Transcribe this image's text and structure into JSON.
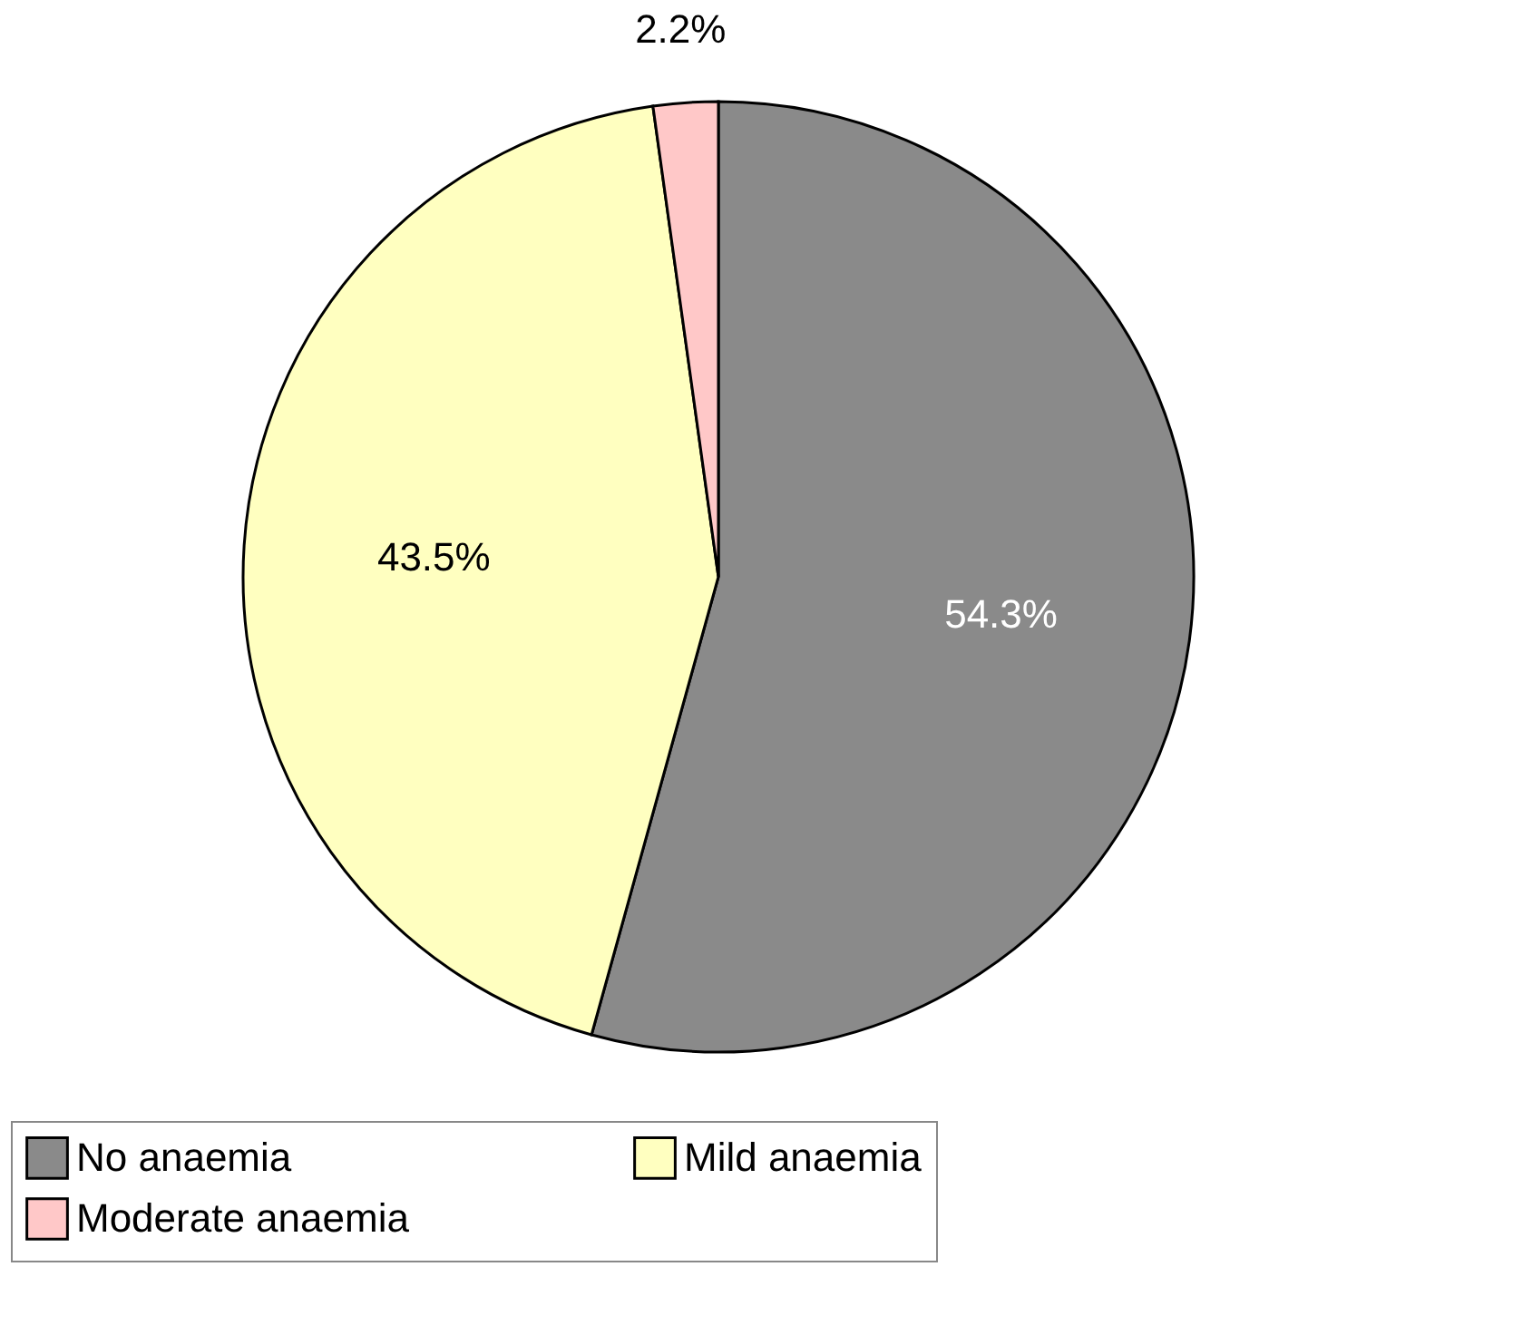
{
  "chart_data": {
    "type": "pie",
    "categories": [
      "No anaemia",
      "Mild anaemia",
      "Moderate anaemia"
    ],
    "values": [
      54.3,
      43.5,
      2.2
    ],
    "colors": [
      "#8a8a8a",
      "#ffffc0",
      "#ffc8c8"
    ],
    "value_labels": [
      "54.3%",
      "43.5%",
      "2.2%"
    ],
    "legend": "bottom"
  }
}
